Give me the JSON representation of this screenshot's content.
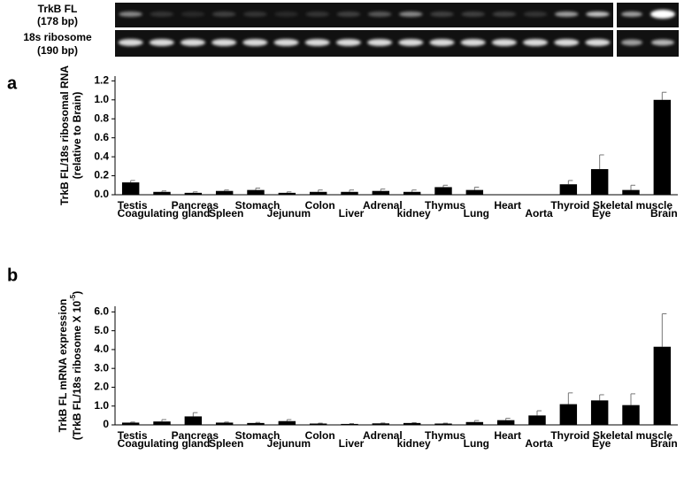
{
  "gel": {
    "rows": [
      {
        "label": "TrkB FL",
        "size": "(178 bp)"
      },
      {
        "label": "18s ribosome",
        "size": "(190 bp)"
      }
    ]
  },
  "chart_data": [
    {
      "type": "bar",
      "panel": "a",
      "y_label": [
        "TrkB FL/18s ribosomal RNA",
        "(relative to Brain)"
      ],
      "categories": [
        "Testis",
        "Coagulating gland",
        "Pancreas",
        "Spleen",
        "Stomach",
        "Jejunum",
        "Colon",
        "Liver",
        "Adrenal",
        "kidney",
        "Thymus",
        "Lung",
        "Heart",
        "Aorta",
        "Thyroid",
        "Eye",
        "Skeletal muscle",
        "Brain"
      ],
      "series": [
        {
          "color": "#000000",
          "values": [
            0.13,
            0.03,
            0.02,
            0.04,
            0.05,
            0.02,
            0.03,
            0.03,
            0.04,
            0.03,
            0.08,
            0.05,
            0,
            0,
            0.11,
            0.27,
            0.05,
            1.0
          ],
          "errors": [
            0.02,
            0.01,
            0.01,
            0.01,
            0.02,
            0.01,
            0.02,
            0.02,
            0.02,
            0.02,
            0.02,
            0.03,
            0,
            0,
            0.04,
            0.15,
            0.05,
            0.08
          ]
        }
      ],
      "ylim": [
        0,
        1.25
      ],
      "yticks": [
        {
          "value": 0,
          "label": "0.0"
        },
        0.2,
        0.4,
        0.6,
        0.8,
        {
          "value": 1.0,
          "label": "1.0"
        },
        1.2
      ]
    },
    {
      "type": "bar",
      "panel": "b",
      "y_label": [
        "TrkB FL mRNA expression",
        "(TrkB FL/18s ribosome X 10",
        "-5",
        ")"
      ],
      "categories": [
        "Testis",
        "Coagulating gland",
        "Pancreas",
        "Spleen",
        "Stomach",
        "Jejunum",
        "Colon",
        "Liver",
        "Adrenal",
        "kidney",
        "Thymus",
        "Lung",
        "Heart",
        "Aorta",
        "Thyroid",
        "Eye",
        "Skeletal muscle",
        "Brain"
      ],
      "series": [
        {
          "color": "#000000",
          "values": [
            0.12,
            0.18,
            0.45,
            0.12,
            0.1,
            0.2,
            0.07,
            0.05,
            0.08,
            0.1,
            0.07,
            0.15,
            0.25,
            0.5,
            1.1,
            1.3,
            1.05,
            4.15
          ],
          "errors": [
            0.03,
            0.1,
            0.2,
            0.03,
            0.03,
            0.08,
            0.02,
            0.02,
            0.02,
            0.02,
            0.02,
            0.08,
            0.1,
            0.25,
            0.6,
            0.3,
            0.6,
            1.75
          ]
        }
      ],
      "ylim": [
        0,
        6.3
      ],
      "yticks": [
        0,
        {
          "value": 1.0,
          "label": "1.0"
        },
        {
          "value": 2.0,
          "label": "2.0"
        },
        {
          "value": 3.0,
          "label": "3.0"
        },
        {
          "value": 4.0,
          "label": "4.0"
        },
        {
          "value": 5.0,
          "label": "5.0"
        },
        {
          "value": 6.0,
          "label": "6.0"
        }
      ]
    }
  ]
}
